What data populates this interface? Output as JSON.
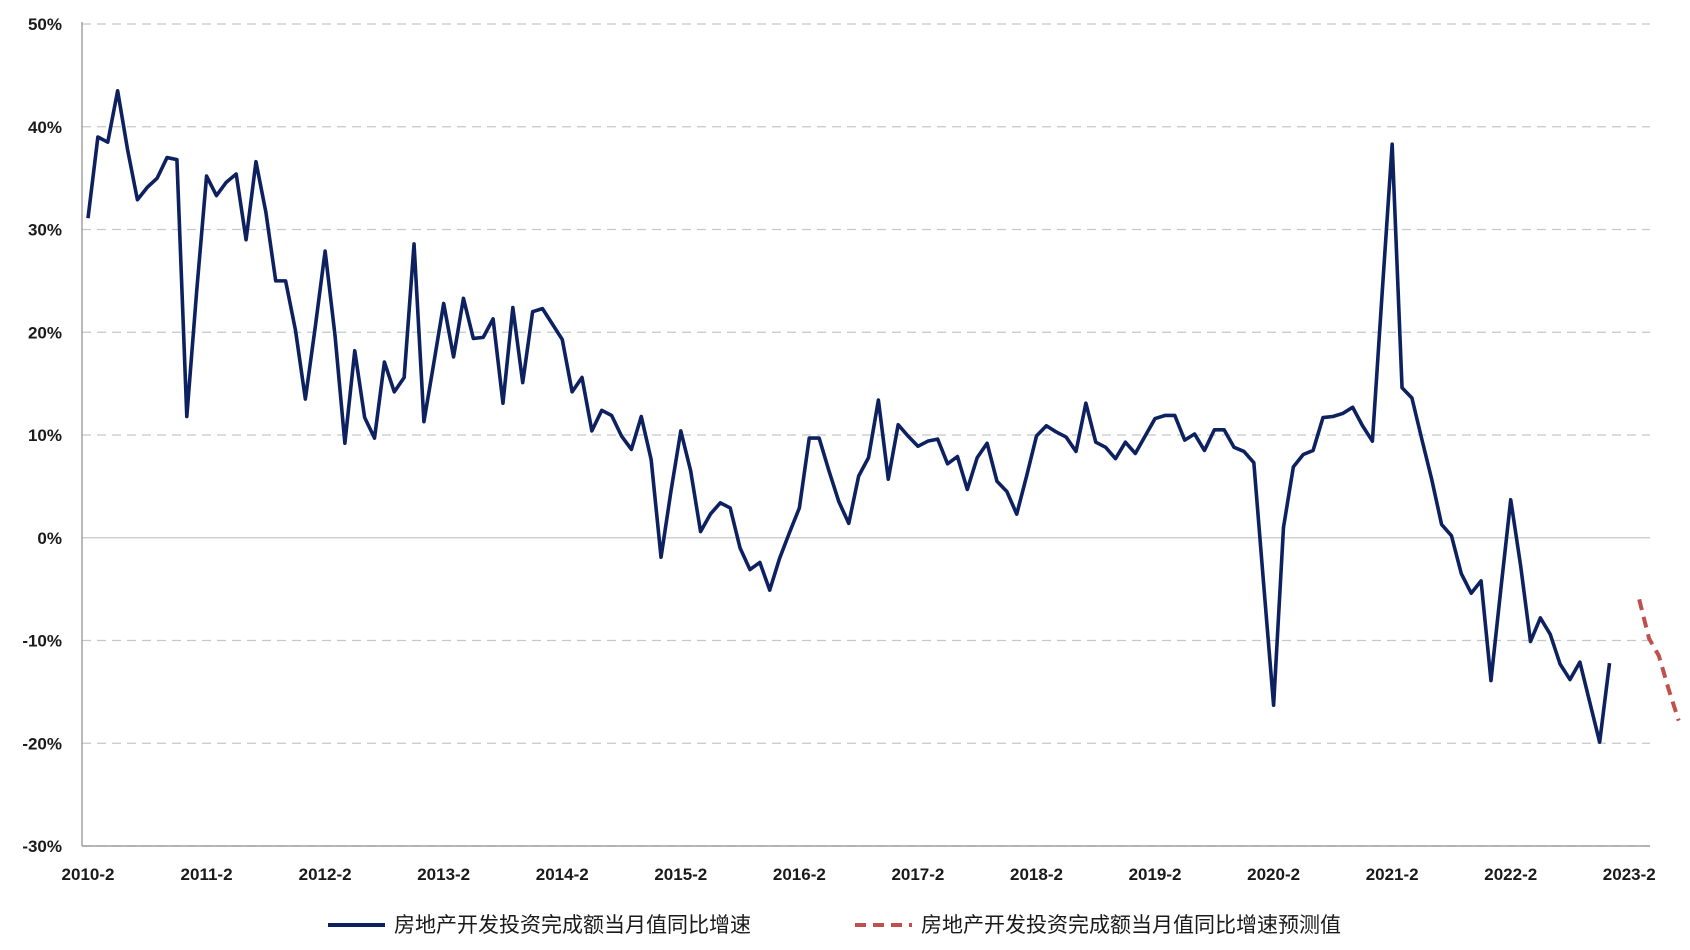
{
  "chart_data": {
    "type": "line",
    "ylim": [
      -30,
      50
    ],
    "y_ticks": [
      -30,
      -20,
      -10,
      0,
      10,
      20,
      30,
      40,
      50
    ],
    "y_tick_labels": [
      "-30%",
      "-20%",
      "-10%",
      "0%",
      "10%",
      "20%",
      "30%",
      "40%",
      "50%"
    ],
    "x_tick_labels": [
      "2010-2",
      "2011-2",
      "2012-2",
      "2013-2",
      "2014-2",
      "2015-2",
      "2016-2",
      "2017-2",
      "2018-2",
      "2019-2",
      "2020-2",
      "2021-2",
      "2022-2",
      "2023-2"
    ],
    "grid": true,
    "legend_position": "bottom",
    "colors": {
      "actual": "#0d2161",
      "forecast": "#c0504d",
      "grid": "#c8c8c8",
      "axis": "#8c8c8c"
    },
    "series": [
      {
        "name": "房地产开发投资完成额当月值同比增速",
        "style": "solid",
        "x": [
          "2010-02",
          "2010-03",
          "2010-04",
          "2010-05",
          "2010-06",
          "2010-07",
          "2010-08",
          "2010-09",
          "2010-10",
          "2010-11",
          "2010-12",
          "2011-01",
          "2011-02",
          "2011-03",
          "2011-04",
          "2011-05",
          "2011-06",
          "2011-07",
          "2011-08",
          "2011-09",
          "2011-10",
          "2011-11",
          "2011-12",
          "2012-01",
          "2012-02",
          "2012-03",
          "2012-04",
          "2012-05",
          "2012-06",
          "2012-07",
          "2012-08",
          "2012-09",
          "2012-10",
          "2012-11",
          "2012-12",
          "2013-01",
          "2013-02",
          "2013-03",
          "2013-04",
          "2013-05",
          "2013-06",
          "2013-07",
          "2013-08",
          "2013-09",
          "2013-10",
          "2013-11",
          "2013-12",
          "2014-01",
          "2014-02",
          "2014-03",
          "2014-04",
          "2014-05",
          "2014-06",
          "2014-07",
          "2014-08",
          "2014-09",
          "2014-10",
          "2014-11",
          "2014-12",
          "2015-01",
          "2015-02",
          "2015-03",
          "2015-04",
          "2015-05",
          "2015-06",
          "2015-07",
          "2015-08",
          "2015-09",
          "2015-10",
          "2015-11",
          "2015-12",
          "2016-01",
          "2016-02",
          "2016-03",
          "2016-04",
          "2016-05",
          "2016-06",
          "2016-07",
          "2016-08",
          "2016-09",
          "2016-10",
          "2016-11",
          "2016-12",
          "2017-01",
          "2017-02",
          "2017-03",
          "2017-04",
          "2017-05",
          "2017-06",
          "2017-07",
          "2017-08",
          "2017-09",
          "2017-10",
          "2017-11",
          "2017-12",
          "2018-01",
          "2018-02",
          "2018-03",
          "2018-04",
          "2018-05",
          "2018-06",
          "2018-07",
          "2018-08",
          "2018-09",
          "2018-10",
          "2018-11",
          "2018-12",
          "2019-01",
          "2019-02",
          "2019-03",
          "2019-04",
          "2019-05",
          "2019-06",
          "2019-07",
          "2019-08",
          "2019-09",
          "2019-10",
          "2019-11",
          "2019-12",
          "2020-01",
          "2020-02",
          "2020-03",
          "2020-04",
          "2020-05",
          "2020-06",
          "2020-07",
          "2020-08",
          "2020-09",
          "2020-10",
          "2020-11",
          "2020-12",
          "2021-01",
          "2021-02",
          "2021-03",
          "2021-04",
          "2021-05",
          "2021-06",
          "2021-07",
          "2021-08",
          "2021-09",
          "2021-10",
          "2021-11",
          "2021-12",
          "2022-01",
          "2022-02",
          "2022-03",
          "2022-04",
          "2022-05",
          "2022-06",
          "2022-07",
          "2022-08",
          "2022-09",
          "2022-10",
          "2022-11",
          "2022-12"
        ],
        "y": [
          31.1,
          39.0,
          38.5,
          43.5,
          37.8,
          32.9,
          34.1,
          35.0,
          37.0,
          36.8,
          11.8,
          24.0,
          35.2,
          33.3,
          34.6,
          35.4,
          29.0,
          36.6,
          31.7,
          25.0,
          25.0,
          20.2,
          13.5,
          20.5,
          27.9,
          19.7,
          9.2,
          18.2,
          11.7,
          9.7,
          17.1,
          14.2,
          15.6,
          28.6,
          11.3,
          17.0,
          22.8,
          17.6,
          23.3,
          19.4,
          19.5,
          21.3,
          13.1,
          22.4,
          15.1,
          22.0,
          22.3,
          20.8,
          19.3,
          14.2,
          15.6,
          10.4,
          12.4,
          11.9,
          9.9,
          8.6,
          11.8,
          7.6,
          -1.9,
          4.5,
          10.4,
          6.5,
          0.6,
          2.3,
          3.4,
          2.9,
          -1.0,
          -3.1,
          -2.4,
          -5.1,
          -2.0,
          0.5,
          2.9,
          9.7,
          9.7,
          6.5,
          3.5,
          1.4,
          6.0,
          7.8,
          13.4,
          5.7,
          11.0,
          9.9,
          8.9,
          9.4,
          9.6,
          7.2,
          7.9,
          4.7,
          7.8,
          9.2,
          5.5,
          4.5,
          2.3,
          6.0,
          9.9,
          10.9,
          10.3,
          9.8,
          8.4,
          13.1,
          9.3,
          8.8,
          7.7,
          9.3,
          8.2,
          9.9,
          11.6,
          11.9,
          11.9,
          9.5,
          10.1,
          8.5,
          10.5,
          10.5,
          8.8,
          8.4,
          7.3,
          -4.6,
          -16.3,
          1.0,
          6.9,
          8.1,
          8.5,
          11.7,
          11.8,
          12.1,
          12.7,
          10.9,
          9.4,
          24.0,
          38.3,
          14.6,
          13.6,
          9.6,
          5.7,
          1.3,
          0.2,
          -3.5,
          -5.4,
          -4.2,
          -13.9,
          -5.0,
          3.7,
          -2.7,
          -10.1,
          -7.8,
          -9.4,
          -12.3,
          -13.8,
          -12.1,
          -16.0,
          -19.9,
          -12.2
        ]
      },
      {
        "name": "房地产开发投资完成额当月值同比增速预测值",
        "style": "dashed",
        "x": [
          "2023-03",
          "2023-04",
          "2023-05",
          "2023-06",
          "2023-07"
        ],
        "y": [
          -6.0,
          -9.8,
          -11.5,
          -14.8,
          -17.8
        ]
      }
    ]
  }
}
